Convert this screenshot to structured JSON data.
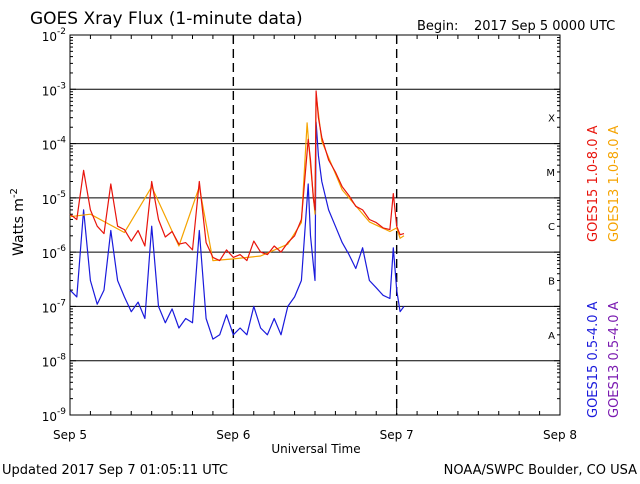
{
  "header": {
    "title": "GOES Xray Flux (1-minute data)",
    "begin_label": "Begin:",
    "begin_value": "2017 Sep 5 0000 UTC"
  },
  "footer": {
    "updated": "Updated 2017 Sep  7 01:05:11 UTC",
    "credit": "NOAA/SWPC Boulder, CO USA"
  },
  "colors": {
    "goes15_long": "#e8140c",
    "goes13_long": "#f5a300",
    "goes15_short": "#1a1adc",
    "goes13_short": "#7a1ab0",
    "grid": "#000000"
  },
  "chart_data": {
    "type": "line",
    "title": "GOES Xray Flux (1-minute data)",
    "xlabel": "Universal Time",
    "ylabel": "Watts m",
    "ylabel_superscript": "-2",
    "y_scale": "log",
    "ylim": [
      1e-09,
      0.01
    ],
    "xlim": [
      "2017-09-05T00:00",
      "2017-09-08T00:00"
    ],
    "x_ticks": [
      {
        "t": "2017-09-05T00:00",
        "label": "Sep 5"
      },
      {
        "t": "2017-09-06T00:00",
        "label": "Sep 6"
      },
      {
        "t": "2017-09-07T00:00",
        "label": "Sep 7"
      },
      {
        "t": "2017-09-08T00:00",
        "label": "Sep 8"
      }
    ],
    "y_ticks": [
      {
        "v": 0.01,
        "base": "10",
        "exp": "-2"
      },
      {
        "v": 0.001,
        "base": "10",
        "exp": "-3"
      },
      {
        "v": 0.0001,
        "base": "10",
        "exp": "-4"
      },
      {
        "v": 1e-05,
        "base": "10",
        "exp": "-5"
      },
      {
        "v": 1e-06,
        "base": "10",
        "exp": "-6"
      },
      {
        "v": 1e-07,
        "base": "10",
        "exp": "-7"
      },
      {
        "v": 1e-08,
        "base": "10",
        "exp": "-8"
      },
      {
        "v": 1e-09,
        "base": "10",
        "exp": "-9"
      }
    ],
    "flare_classes": [
      {
        "label": "X",
        "v": 0.0003
      },
      {
        "label": "M",
        "v": 3e-05
      },
      {
        "label": "C",
        "v": 3e-06
      },
      {
        "label": "B",
        "v": 3e-07
      },
      {
        "label": "A",
        "v": 3e-08
      }
    ],
    "grid_horizontal": true,
    "grid_vertical": "dashed",
    "legend_placement": "right, rotated",
    "series": [
      {
        "name": "GOES15 1.0-8.0 A",
        "color": "#e8140c",
        "points": [
          [
            "2017-09-05T00:00",
            5e-06
          ],
          [
            "2017-09-05T01:00",
            4e-06
          ],
          [
            "2017-09-05T02:00",
            3.2e-05
          ],
          [
            "2017-09-05T03:00",
            6e-06
          ],
          [
            "2017-09-05T04:00",
            3e-06
          ],
          [
            "2017-09-05T05:00",
            2.2e-06
          ],
          [
            "2017-09-05T06:00",
            1.8e-05
          ],
          [
            "2017-09-05T07:00",
            3e-06
          ],
          [
            "2017-09-05T08:00",
            2.6e-06
          ],
          [
            "2017-09-05T09:00",
            1.6e-06
          ],
          [
            "2017-09-05T10:00",
            2.5e-06
          ],
          [
            "2017-09-05T11:00",
            1.3e-06
          ],
          [
            "2017-09-05T12:00",
            2e-05
          ],
          [
            "2017-09-05T13:00",
            4e-06
          ],
          [
            "2017-09-05T14:00",
            1.9e-06
          ],
          [
            "2017-09-05T15:00",
            2.4e-06
          ],
          [
            "2017-09-05T16:00",
            1.4e-06
          ],
          [
            "2017-09-05T17:00",
            1.5e-06
          ],
          [
            "2017-09-05T18:00",
            1.1e-06
          ],
          [
            "2017-09-05T19:00",
            2e-05
          ],
          [
            "2017-09-05T20:00",
            1.5e-06
          ],
          [
            "2017-09-05T21:00",
            8e-07
          ],
          [
            "2017-09-05T22:00",
            7e-07
          ],
          [
            "2017-09-05T23:00",
            1.1e-06
          ],
          [
            "2017-09-06T00:00",
            8e-07
          ],
          [
            "2017-09-06T01:00",
            9e-07
          ],
          [
            "2017-09-06T02:00",
            7e-07
          ],
          [
            "2017-09-06T03:00",
            1.6e-06
          ],
          [
            "2017-09-06T04:00",
            1e-06
          ],
          [
            "2017-09-06T05:00",
            9e-07
          ],
          [
            "2017-09-06T06:00",
            1.3e-06
          ],
          [
            "2017-09-06T07:00",
            1e-06
          ],
          [
            "2017-09-06T08:00",
            1.5e-06
          ],
          [
            "2017-09-06T09:00",
            2e-06
          ],
          [
            "2017-09-06T10:00",
            4e-06
          ],
          [
            "2017-09-06T11:00",
            0.00012
          ],
          [
            "2017-09-06T11:20",
            5e-05
          ],
          [
            "2017-09-06T11:45",
            1e-05
          ],
          [
            "2017-09-06T12:00",
            6e-06
          ],
          [
            "2017-09-06T12:10",
            0.00093
          ],
          [
            "2017-09-06T12:30",
            0.0003
          ],
          [
            "2017-09-06T13:00",
            0.00013
          ],
          [
            "2017-09-06T14:00",
            5e-05
          ],
          [
            "2017-09-06T15:00",
            3e-05
          ],
          [
            "2017-09-06T16:00",
            1.6e-05
          ],
          [
            "2017-09-06T17:00",
            1.1e-05
          ],
          [
            "2017-09-06T18:00",
            7e-06
          ],
          [
            "2017-09-06T19:00",
            6e-06
          ],
          [
            "2017-09-06T20:00",
            4e-06
          ],
          [
            "2017-09-06T21:00",
            3.5e-06
          ],
          [
            "2017-09-06T22:00",
            2.8e-06
          ],
          [
            "2017-09-06T23:00",
            2.6e-06
          ],
          [
            "2017-09-06T23:30",
            1.2e-05
          ],
          [
            "2017-09-07T00:00",
            3e-06
          ],
          [
            "2017-09-07T00:30",
            2.1e-06
          ],
          [
            "2017-09-07T01:05",
            2.2e-06
          ]
        ]
      },
      {
        "name": "GOES13 1.0-8.0 A",
        "color": "#f5a300",
        "points": [
          [
            "2017-09-05T00:00",
            4.5e-06
          ],
          [
            "2017-09-05T03:00",
            5e-06
          ],
          [
            "2017-09-05T08:00",
            2.3e-06
          ],
          [
            "2017-09-05T12:00",
            1.6e-05
          ],
          [
            "2017-09-05T16:00",
            1.3e-06
          ],
          [
            "2017-09-05T19:00",
            1.6e-05
          ],
          [
            "2017-09-05T21:00",
            7e-07
          ],
          [
            "2017-09-06T00:00",
            7.5e-07
          ],
          [
            "2017-09-06T04:00",
            8.5e-07
          ],
          [
            "2017-09-06T08:00",
            1.4e-06
          ],
          [
            "2017-09-06T10:00",
            3.5e-06
          ],
          [
            "2017-09-06T10:50",
            0.00024
          ],
          [
            "2017-09-06T11:20",
            4e-05
          ],
          [
            "2017-09-06T12:00",
            5e-06
          ],
          [
            "2017-09-06T12:10",
            0.0008
          ],
          [
            "2017-09-06T13:00",
            0.00011
          ],
          [
            "2017-09-06T16:00",
            1.4e-05
          ],
          [
            "2017-09-06T20:00",
            3.6e-06
          ],
          [
            "2017-09-06T23:00",
            2.4e-06
          ],
          [
            "2017-09-07T00:00",
            2.8e-06
          ],
          [
            "2017-09-07T00:30",
            1.8e-06
          ],
          [
            "2017-09-07T01:05",
            2e-06
          ]
        ]
      },
      {
        "name": "GOES15 0.5-4.0 A",
        "color": "#1a1adc",
        "points": [
          [
            "2017-09-05T00:00",
            2e-07
          ],
          [
            "2017-09-05T01:00",
            1.5e-07
          ],
          [
            "2017-09-05T02:00",
            6e-06
          ],
          [
            "2017-09-05T03:00",
            3e-07
          ],
          [
            "2017-09-05T04:00",
            1.1e-07
          ],
          [
            "2017-09-05T05:00",
            2e-07
          ],
          [
            "2017-09-05T06:00",
            2.5e-06
          ],
          [
            "2017-09-05T07:00",
            3e-07
          ],
          [
            "2017-09-05T08:00",
            1.5e-07
          ],
          [
            "2017-09-05T09:00",
            8e-08
          ],
          [
            "2017-09-05T10:00",
            1.2e-07
          ],
          [
            "2017-09-05T11:00",
            6e-08
          ],
          [
            "2017-09-05T12:00",
            3e-06
          ],
          [
            "2017-09-05T13:00",
            1e-07
          ],
          [
            "2017-09-05T14:00",
            5e-08
          ],
          [
            "2017-09-05T15:00",
            9e-08
          ],
          [
            "2017-09-05T16:00",
            4e-08
          ],
          [
            "2017-09-05T17:00",
            6e-08
          ],
          [
            "2017-09-05T18:00",
            5e-08
          ],
          [
            "2017-09-05T19:00",
            2.5e-06
          ],
          [
            "2017-09-05T20:00",
            6e-08
          ],
          [
            "2017-09-05T21:00",
            2.5e-08
          ],
          [
            "2017-09-05T22:00",
            3e-08
          ],
          [
            "2017-09-05T23:00",
            7e-08
          ],
          [
            "2017-09-06T00:00",
            3e-08
          ],
          [
            "2017-09-06T01:00",
            4e-08
          ],
          [
            "2017-09-06T02:00",
            3e-08
          ],
          [
            "2017-09-06T03:00",
            1e-07
          ],
          [
            "2017-09-06T04:00",
            4e-08
          ],
          [
            "2017-09-06T05:00",
            3e-08
          ],
          [
            "2017-09-06T06:00",
            6e-08
          ],
          [
            "2017-09-06T07:00",
            3e-08
          ],
          [
            "2017-09-06T08:00",
            1e-07
          ],
          [
            "2017-09-06T09:00",
            1.5e-07
          ],
          [
            "2017-09-06T10:00",
            3e-07
          ],
          [
            "2017-09-06T11:00",
            1.8e-05
          ],
          [
            "2017-09-06T11:20",
            2e-06
          ],
          [
            "2017-09-06T11:45",
            6e-07
          ],
          [
            "2017-09-06T12:00",
            3e-07
          ],
          [
            "2017-09-06T12:10",
            0.00025
          ],
          [
            "2017-09-06T12:30",
            6e-05
          ],
          [
            "2017-09-06T13:00",
            2e-05
          ],
          [
            "2017-09-06T14:00",
            6e-06
          ],
          [
            "2017-09-06T15:00",
            3e-06
          ],
          [
            "2017-09-06T16:00",
            1.5e-06
          ],
          [
            "2017-09-06T17:00",
            9e-07
          ],
          [
            "2017-09-06T18:00",
            5e-07
          ],
          [
            "2017-09-06T19:00",
            1.2e-06
          ],
          [
            "2017-09-06T20:00",
            3e-07
          ],
          [
            "2017-09-06T21:00",
            2.2e-07
          ],
          [
            "2017-09-06T22:00",
            1.6e-07
          ],
          [
            "2017-09-06T23:00",
            1.4e-07
          ],
          [
            "2017-09-06T23:30",
            1.2e-06
          ],
          [
            "2017-09-07T00:00",
            2e-07
          ],
          [
            "2017-09-07T00:30",
            8e-08
          ],
          [
            "2017-09-07T01:05",
            1e-07
          ]
        ]
      },
      {
        "name": "GOES13 0.5-4.0 A",
        "color": "#7a1ab0",
        "points": []
      }
    ]
  }
}
